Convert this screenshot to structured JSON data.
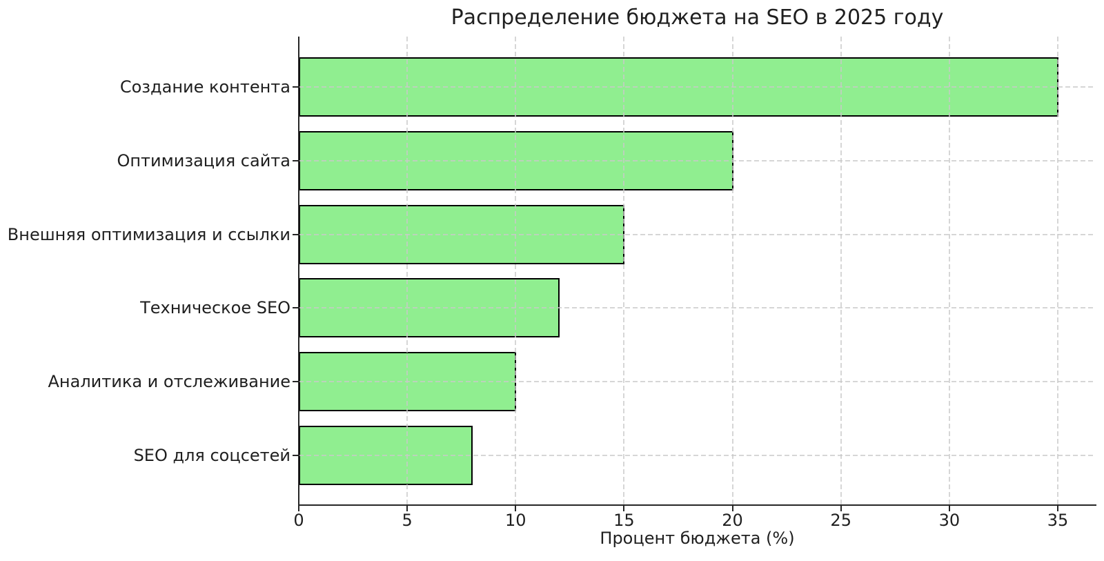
{
  "chart_data": {
    "type": "bar",
    "orientation": "horizontal",
    "title": "Распределение бюджета на SEO в 2025 году",
    "categories": [
      "Создание контента",
      "Оптимизация сайта",
      "Внешняя оптимизация и ссылки",
      "Техническое SEO",
      "Аналитика и отслеживание",
      "SEO для соцсетей"
    ],
    "values": [
      35,
      20,
      15,
      12,
      10,
      8
    ],
    "xlabel": "Процент бюджета (%)",
    "ylabel": "",
    "xlim": [
      0,
      36.75
    ],
    "xticks": [
      0,
      5,
      10,
      15,
      20,
      25,
      30,
      35
    ],
    "grid": true,
    "grid_style": "dashed",
    "legend": "none",
    "bar_color": "#90EE90",
    "bar_edge_color": "#000000",
    "grid_color": "#c9c9c9",
    "text_color": "#1f1f1f",
    "background": "#ffffff"
  }
}
